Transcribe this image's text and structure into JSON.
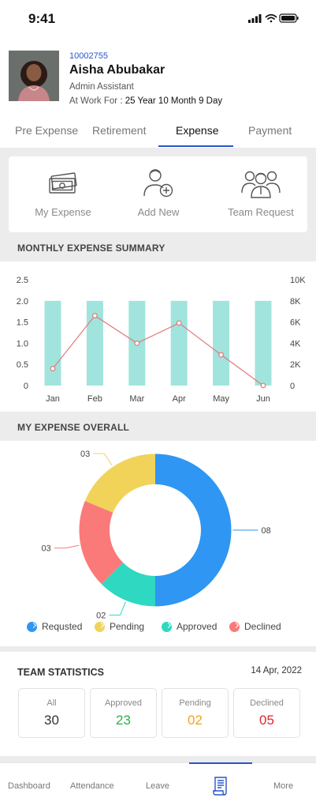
{
  "status_bar": {
    "time": "9:41"
  },
  "profile": {
    "employee_id": "10002755",
    "name": "Aisha Abubakar",
    "role": "Admin Assistant",
    "work_label": "At Work For : ",
    "work_duration": "25 Year 10 Month 9 Day"
  },
  "tabs": [
    {
      "label": "Pre Expense"
    },
    {
      "label": "Retirement"
    },
    {
      "label": "Expense",
      "active": true
    },
    {
      "label": "Payment"
    }
  ],
  "quick_actions": [
    {
      "label": "My Expense",
      "icon": "money-stack-icon"
    },
    {
      "label": "Add New",
      "icon": "add-user-icon"
    },
    {
      "label": "Team Request",
      "icon": "team-icon"
    }
  ],
  "sections": {
    "monthly_summary": "MONTHLY EXPENSE SUMMARY",
    "expense_overall": "MY EXPENSE OVERALL"
  },
  "chart_data": [
    {
      "type": "bar",
      "categories": [
        "Jan",
        "Feb",
        "Mar",
        "Apr",
        "May",
        "Jun"
      ],
      "y_left_ticks": [
        "0",
        "0.5",
        "1.0",
        "1.5",
        "2.0",
        "2.5"
      ],
      "y_right_ticks": [
        "0",
        "2K",
        "4K",
        "6K",
        "8K",
        "10K"
      ],
      "ylim_left": [
        0,
        2.5
      ],
      "ylim_right": [
        0,
        10000
      ],
      "series": [
        {
          "type": "bar",
          "axis": "left",
          "values": [
            2.0,
            2.0,
            2.0,
            2.0,
            2.0,
            2.0
          ],
          "color": "#a0e4dd"
        },
        {
          "type": "line",
          "axis": "right",
          "values": [
            1600,
            6600,
            4000,
            5900,
            2900,
            0
          ],
          "color": "#e27a7a"
        }
      ],
      "grid": false
    },
    {
      "type": "pie",
      "donut": true,
      "slices": [
        {
          "label": "Requsted",
          "value": 8,
          "display": "08",
          "color": "#2f96f3"
        },
        {
          "label": "Approved",
          "value": 2,
          "display": "02",
          "color": "#2ed8c1"
        },
        {
          "label": "Declined",
          "value": 3,
          "display": "03",
          "color": "#fa7a7a"
        },
        {
          "label": "Pending",
          "value": 3,
          "display": "03",
          "color": "#f1d35a"
        }
      ],
      "legend_position": "bottom"
    }
  ],
  "team_statistics": {
    "title": "TEAM STATISTICS",
    "date": "14 Apr, 2022",
    "stats": [
      {
        "label": "All",
        "value": "30",
        "color": "#333333"
      },
      {
        "label": "Approved",
        "value": "23",
        "color": "#2daf48"
      },
      {
        "label": "Pending",
        "value": "02",
        "color": "#f2a418"
      },
      {
        "label": "Declined",
        "value": "05",
        "color": "#e0262a"
      }
    ]
  },
  "bottom_nav": [
    {
      "label": "Dashboard",
      "icon": "dashboard-icon"
    },
    {
      "label": "Attendance",
      "icon": "attendance-icon"
    },
    {
      "label": "Leave",
      "icon": "leave-icon"
    },
    {
      "label": "",
      "icon": "expense-receipt-icon",
      "active": true
    },
    {
      "label": "More",
      "icon": "more-icon"
    }
  ]
}
